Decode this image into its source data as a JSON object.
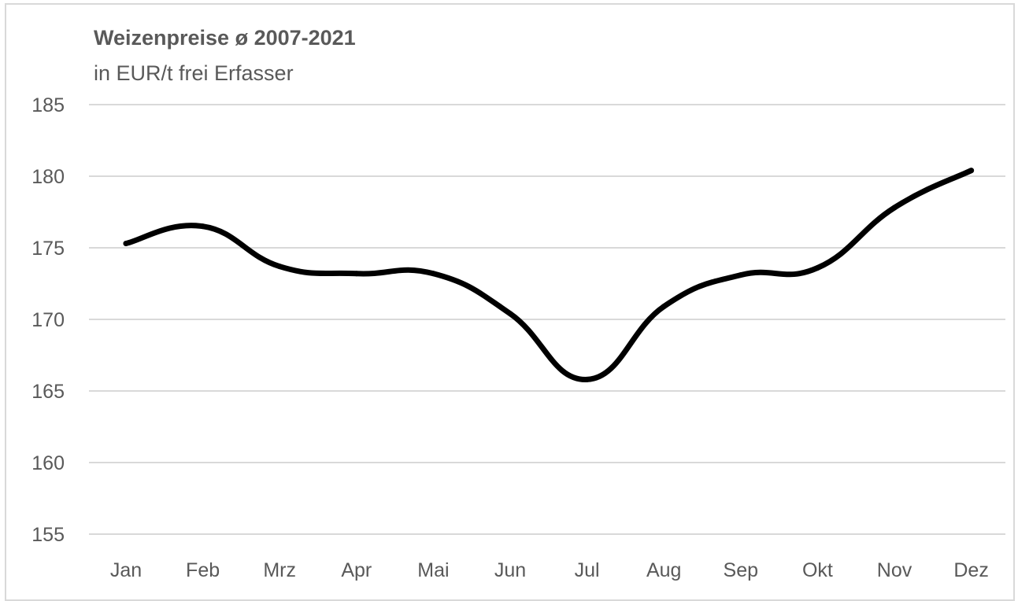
{
  "chart_data": {
    "type": "line",
    "title": "Weizenpreise ø 2007-2021",
    "subtitle": "in EUR/t frei Erfasser",
    "categories": [
      "Jan",
      "Feb",
      "Mrz",
      "Apr",
      "Mai",
      "Jun",
      "Jul",
      "Aug",
      "Sep",
      "Okt",
      "Nov",
      "Dez"
    ],
    "series": [
      {
        "values": [
          175.3,
          176.5,
          173.7,
          173.2,
          173.2,
          170.4,
          165.8,
          170.9,
          173.1,
          173.6,
          177.8,
          180.4
        ]
      }
    ],
    "yticks": [
      "155",
      "160",
      "165",
      "170",
      "175",
      "180",
      "185"
    ],
    "ylim": [
      155,
      185
    ],
    "xlabel": "",
    "ylabel": "",
    "grid": true,
    "legend": "none",
    "colors": {
      "line": "#000000",
      "gridline": "#d9d9d9",
      "text": "#595959",
      "frame": "#d9d9d9"
    }
  }
}
